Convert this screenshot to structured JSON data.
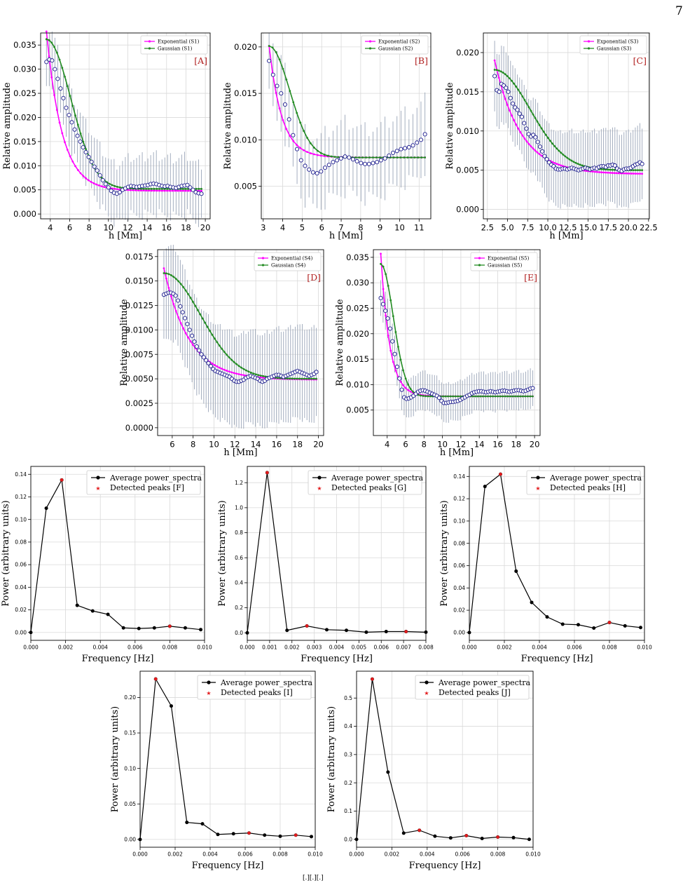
{
  "page": {
    "number": "7"
  },
  "colors": {
    "exponential": "#ff00ff",
    "gaussian": "#228b22",
    "observed_edge": "#1a1a8c",
    "error_bar": "#9aa5b8",
    "panel_letter": "#b22222",
    "spectrum_line": "#000000",
    "peak": "#e31a1c",
    "grid": "#d9d9d9"
  },
  "chart_data": [
    {
      "id": "A",
      "type": "scatter",
      "panel_label": "[A]",
      "xlabel": "h [Mm]",
      "ylabel": "Relative amplitude",
      "xlim": [
        3,
        20.5
      ],
      "ylim": [
        -0.001,
        0.0375
      ],
      "xticks": [
        "4",
        "6",
        "8",
        "10",
        "12",
        "14",
        "16",
        "18",
        "20"
      ],
      "yticks": [
        "0.000",
        "0.005",
        "0.010",
        "0.015",
        "0.020",
        "0.025",
        "0.030",
        "0.035"
      ],
      "legend": [
        "Exponential (S1)",
        "Gaussian (S1)"
      ],
      "legend_position": "top-right",
      "model": {
        "x_start": 3.6,
        "x_end": 19.6,
        "n": 60,
        "exponential": {
          "baseline": 0.0048,
          "amp": 0.033,
          "scale": 1.6
        },
        "gaussian": {
          "baseline": 0.0052,
          "amp": 0.031,
          "sigma": 2.5
        }
      },
      "observed": {
        "x_start": 3.6,
        "x_end": 19.6,
        "n": 56,
        "y": [
          0.0315,
          0.032,
          0.0318,
          0.03,
          0.028,
          0.026,
          0.024,
          0.022,
          0.0205,
          0.019,
          0.0175,
          0.0162,
          0.015,
          0.0138,
          0.0128,
          0.0118,
          0.0108,
          0.0098,
          0.009,
          0.008,
          0.007,
          0.0062,
          0.0055,
          0.0048,
          0.0044,
          0.0042,
          0.0045,
          0.005,
          0.0053,
          0.0056,
          0.0058,
          0.0057,
          0.0056,
          0.0057,
          0.0058,
          0.0059,
          0.006,
          0.0062,
          0.0063,
          0.0062,
          0.006,
          0.0058,
          0.0057,
          0.0058,
          0.0056,
          0.0055,
          0.0054,
          0.0056,
          0.0058,
          0.0059,
          0.006,
          0.0055,
          0.005,
          0.0045,
          0.0043,
          0.0042
        ]
      },
      "error_bar_halfwidth": [
        0.005,
        0.007
      ]
    },
    {
      "id": "B",
      "type": "scatter",
      "panel_label": "[B]",
      "xlabel": "h [Mm]",
      "ylabel": "Relative amplitude",
      "xlim": [
        2.9,
        11.6
      ],
      "ylim": [
        0.0015,
        0.0215
      ],
      "xticks": [
        "3",
        "4",
        "5",
        "6",
        "7",
        "8",
        "9",
        "10",
        "11"
      ],
      "yticks": [
        "0.005",
        "0.010",
        "0.015",
        "0.020"
      ],
      "legend": [
        "Exponential (S2)",
        "Gaussian (S2)"
      ],
      "legend_position": "top-right",
      "model": {
        "x_start": 3.3,
        "x_end": 11.3,
        "n": 46,
        "exponential": {
          "baseline": 0.0081,
          "amp": 0.012,
          "scale": 0.65
        },
        "gaussian": {
          "baseline": 0.0081,
          "amp": 0.012,
          "sigma": 1.05
        }
      },
      "observed": {
        "x_start": 3.3,
        "x_end": 11.3,
        "n": 40,
        "y": [
          0.0185,
          0.017,
          0.0158,
          0.015,
          0.0138,
          0.0122,
          0.0105,
          0.009,
          0.0078,
          0.0072,
          0.0068,
          0.0065,
          0.0064,
          0.0066,
          0.007,
          0.0073,
          0.0076,
          0.0078,
          0.008,
          0.0082,
          0.0081,
          0.0079,
          0.0077,
          0.0075,
          0.0074,
          0.0074,
          0.0075,
          0.0076,
          0.0078,
          0.008,
          0.0083,
          0.0086,
          0.0088,
          0.009,
          0.0091,
          0.0092,
          0.0094,
          0.0097,
          0.01,
          0.0106
        ]
      },
      "error_bar_halfwidth": [
        0.003,
        0.0045
      ]
    },
    {
      "id": "C",
      "type": "scatter",
      "panel_label": "[C]",
      "xlabel": "h [Mm]",
      "ylabel": "Relative amplitude",
      "xlim": [
        2.0,
        22.6
      ],
      "ylim": [
        -0.0012,
        0.0225
      ],
      "xticks": [
        "2.5",
        "5.0",
        "7.5",
        "10.0",
        "12.5",
        "15.0",
        "17.5",
        "20.0",
        "22.5"
      ],
      "yticks": [
        "0.000",
        "0.005",
        "0.010",
        "0.015",
        "0.020"
      ],
      "legend": [
        "Exponential (S3)",
        "Gaussian (S3)"
      ],
      "legend_position": "top-right",
      "model": {
        "x_start": 3.4,
        "x_end": 21.7,
        "n": 70,
        "exponential": {
          "baseline": 0.0045,
          "amp": 0.0145,
          "scale": 3.2
        },
        "gaussian": {
          "baseline": 0.005,
          "amp": 0.0128,
          "sigma": 4.4
        }
      },
      "observed": {
        "x_start": 3.4,
        "x_end": 21.7,
        "n": 66,
        "y": [
          0.017,
          0.0152,
          0.015,
          0.016,
          0.0158,
          0.0155,
          0.015,
          0.0142,
          0.0135,
          0.013,
          0.0127,
          0.0122,
          0.0118,
          0.011,
          0.0103,
          0.0096,
          0.0093,
          0.0095,
          0.0092,
          0.0086,
          0.008,
          0.0074,
          0.0068,
          0.0064,
          0.006,
          0.0057,
          0.0055,
          0.0052,
          0.0051,
          0.0051,
          0.0052,
          0.0052,
          0.0051,
          0.0052,
          0.0053,
          0.0052,
          0.0051,
          0.005,
          0.0051,
          0.0052,
          0.0053,
          0.0052,
          0.0051,
          0.0052,
          0.0053,
          0.0052,
          0.0054,
          0.0055,
          0.0055,
          0.0054,
          0.0056,
          0.0056,
          0.0057,
          0.0056,
          0.0052,
          0.005,
          0.0049,
          0.0051,
          0.0052,
          0.0052,
          0.0053,
          0.0055,
          0.0057,
          0.0058,
          0.006,
          0.0058
        ]
      },
      "error_bar_halfwidth": [
        0.0045,
        0.005
      ]
    },
    {
      "id": "D",
      "type": "scatter",
      "panel_label": "[D]",
      "xlabel": "h [Mm]",
      "ylabel": "Relative amplitude",
      "xlim": [
        4.6,
        20.5
      ],
      "ylim": [
        -0.0008,
        0.0182
      ],
      "xticks": [
        "6",
        "8",
        "10",
        "12",
        "14",
        "16",
        "18",
        "20"
      ],
      "yticks": [
        "0.0000",
        "0.0025",
        "0.0050",
        "0.0075",
        "0.0100",
        "0.0125",
        "0.0150",
        "0.0175"
      ],
      "legend": [
        "Exponential (S4)",
        "Gaussian (S4)"
      ],
      "legend_position": "top-right",
      "model": {
        "x_start": 5.2,
        "x_end": 19.8,
        "n": 64,
        "exponential": {
          "baseline": 0.0049,
          "amp": 0.0114,
          "scale": 2.4
        },
        "gaussian": {
          "baseline": 0.005,
          "amp": 0.0108,
          "sigma": 3.5
        }
      },
      "observed": {
        "x_start": 5.2,
        "x_end": 19.8,
        "n": 66,
        "y": [
          0.0136,
          0.0137,
          0.0138,
          0.0138,
          0.0137,
          0.0135,
          0.013,
          0.0124,
          0.0118,
          0.0112,
          0.0106,
          0.01,
          0.0094,
          0.0088,
          0.0083,
          0.0079,
          0.0075,
          0.0072,
          0.0069,
          0.0066,
          0.0063,
          0.006,
          0.0058,
          0.0057,
          0.0056,
          0.0055,
          0.0054,
          0.0053,
          0.0052,
          0.005,
          0.0048,
          0.0047,
          0.0047,
          0.0048,
          0.0049,
          0.0051,
          0.0052,
          0.0053,
          0.0052,
          0.0051,
          0.005,
          0.0048,
          0.0047,
          0.0048,
          0.005,
          0.0051,
          0.0052,
          0.0053,
          0.0054,
          0.0054,
          0.0053,
          0.0052,
          0.0053,
          0.0054,
          0.0055,
          0.0056,
          0.0057,
          0.0058,
          0.0057,
          0.0056,
          0.0055,
          0.0054,
          0.0053,
          0.0054,
          0.0055,
          0.0057
        ]
      },
      "error_bar_halfwidth": [
        0.0045,
        0.005
      ]
    },
    {
      "id": "E",
      "type": "scatter",
      "panel_label": "[E]",
      "xlabel": "h [Mm]",
      "ylabel": "Relative amplitude",
      "xlim": [
        2.5,
        20.6
      ],
      "ylim": [
        0.0,
        0.0365
      ],
      "xticks": [
        "4",
        "6",
        "8",
        "10",
        "12",
        "14",
        "16",
        "18",
        "20"
      ],
      "yticks": [
        "0.005",
        "0.010",
        "0.015",
        "0.020",
        "0.025",
        "0.030",
        "0.035"
      ],
      "legend": [
        "Exponential (S5)",
        "Gaussian (S5)"
      ],
      "legend_position": "top-right",
      "model": {
        "x_start": 3.3,
        "x_end": 19.8,
        "n": 62,
        "exponential": {
          "baseline": 0.0077,
          "amp": 0.028,
          "scale": 0.95
        },
        "gaussian": {
          "baseline": 0.0077,
          "amp": 0.026,
          "sigma": 1.35
        }
      },
      "observed": {
        "x_start": 3.3,
        "x_end": 19.8,
        "n": 66,
        "y": [
          0.027,
          0.0258,
          0.0245,
          0.023,
          0.021,
          0.0185,
          0.016,
          0.0135,
          0.0112,
          0.009,
          0.0075,
          0.0072,
          0.0073,
          0.0075,
          0.0078,
          0.0082,
          0.0086,
          0.0088,
          0.0089,
          0.0088,
          0.0086,
          0.0084,
          0.0082,
          0.008,
          0.0078,
          0.0074,
          0.0068,
          0.0064,
          0.0064,
          0.0065,
          0.0066,
          0.0066,
          0.0067,
          0.0068,
          0.007,
          0.0073,
          0.0075,
          0.0078,
          0.008,
          0.0083,
          0.0085,
          0.0086,
          0.0087,
          0.0087,
          0.0086,
          0.0085,
          0.0086,
          0.0087,
          0.0086,
          0.0085,
          0.0086,
          0.0087,
          0.0088,
          0.0088,
          0.0087,
          0.0086,
          0.0087,
          0.0088,
          0.0089,
          0.0089,
          0.0088,
          0.0087,
          0.0088,
          0.009,
          0.0092,
          0.0093
        ]
      },
      "error_bar_halfwidth": [
        0.0035,
        0.004
      ]
    },
    {
      "id": "F",
      "type": "line",
      "xlabel": "Frequency [Hz]",
      "ylabel": "Power (arbitrary units)",
      "xlim": [
        0,
        0.01
      ],
      "ylim": [
        -0.007,
        0.147
      ],
      "xticks": [
        "0.000",
        "0.002",
        "0.004",
        "0.006",
        "0.008",
        "0.010"
      ],
      "yticks": [
        "0.00",
        "0.02",
        "0.04",
        "0.06",
        "0.08",
        "0.10",
        "0.12",
        "0.14"
      ],
      "legend": [
        "Average power_spectra",
        "Detected peaks [F]"
      ],
      "legend_position": "top-right",
      "x": [
        0.0,
        0.00089,
        0.00178,
        0.00267,
        0.00356,
        0.00444,
        0.00533,
        0.00622,
        0.00711,
        0.008,
        0.00889,
        0.00978
      ],
      "y": [
        0.0,
        0.11,
        0.135,
        0.024,
        0.019,
        0.016,
        0.004,
        0.0035,
        0.004,
        0.0055,
        0.004,
        0.0025
      ],
      "peaks_x": [
        0.00178,
        0.008
      ],
      "peaks_y": [
        0.135,
        0.0055
      ]
    },
    {
      "id": "G",
      "type": "line",
      "xlabel": "Frequency [Hz]",
      "ylabel": "Power (arbitrary units)",
      "xlim": [
        0,
        0.008
      ],
      "ylim": [
        -0.06,
        1.33
      ],
      "xticks": [
        "0.000",
        "0.001",
        "0.002",
        "0.003",
        "0.004",
        "0.005",
        "0.006",
        "0.007",
        "0.008"
      ],
      "yticks": [
        "0.0",
        "0.2",
        "0.4",
        "0.6",
        "0.8",
        "1.0",
        "1.2"
      ],
      "legend": [
        "Average power_spectra",
        "Detected peaks [G]"
      ],
      "legend_position": "top-right",
      "x": [
        0.0,
        0.00089,
        0.00178,
        0.00267,
        0.00356,
        0.00444,
        0.00533,
        0.00622,
        0.00711,
        0.008
      ],
      "y": [
        0.0,
        1.28,
        0.02,
        0.055,
        0.025,
        0.02,
        0.005,
        0.01,
        0.01,
        0.005
      ],
      "peaks_x": [
        0.00089,
        0.00267,
        0.00711
      ],
      "peaks_y": [
        1.28,
        0.055,
        0.01
      ]
    },
    {
      "id": "H",
      "type": "line",
      "xlabel": "Frequency [Hz]",
      "ylabel": "Power (arbitrary units)",
      "xlim": [
        0,
        0.01
      ],
      "ylim": [
        -0.007,
        0.149
      ],
      "xticks": [
        "0.000",
        "0.002",
        "0.004",
        "0.006",
        "0.008",
        "0.010"
      ],
      "yticks": [
        "0.00",
        "0.02",
        "0.04",
        "0.06",
        "0.08",
        "0.10",
        "0.12",
        "0.14"
      ],
      "legend": [
        "Average power_spectra",
        "Detected peaks [H]"
      ],
      "legend_position": "top-right",
      "x": [
        0.0,
        0.00089,
        0.00178,
        0.00267,
        0.00356,
        0.00444,
        0.00533,
        0.00622,
        0.00711,
        0.008,
        0.00889,
        0.00978
      ],
      "y": [
        0.0,
        0.131,
        0.142,
        0.055,
        0.027,
        0.014,
        0.0075,
        0.007,
        0.004,
        0.009,
        0.006,
        0.0045
      ],
      "peaks_x": [
        0.00178,
        0.008
      ],
      "peaks_y": [
        0.142,
        0.009
      ]
    },
    {
      "id": "I",
      "type": "line",
      "xlabel": "Frequency [Hz]",
      "ylabel": "Power (arbitrary units)",
      "xlim": [
        0,
        0.01
      ],
      "ylim": [
        -0.011,
        0.237
      ],
      "xticks": [
        "0.000",
        "0.002",
        "0.004",
        "0.006",
        "0.008",
        "0.010"
      ],
      "yticks": [
        "0.00",
        "0.05",
        "0.10",
        "0.15",
        "0.20"
      ],
      "legend": [
        "Average power_spectra",
        "Detected peaks [I]"
      ],
      "legend_position": "top-right",
      "x": [
        0.0,
        0.00089,
        0.00178,
        0.00267,
        0.00356,
        0.00444,
        0.00533,
        0.00622,
        0.00711,
        0.008,
        0.00889,
        0.00978
      ],
      "y": [
        0.0,
        0.226,
        0.188,
        0.024,
        0.022,
        0.007,
        0.008,
        0.009,
        0.006,
        0.0045,
        0.006,
        0.004
      ],
      "peaks_x": [
        0.00089,
        0.00622,
        0.00889
      ],
      "peaks_y": [
        0.226,
        0.009,
        0.006
      ]
    },
    {
      "id": "J",
      "type": "line",
      "xlabel": "Frequency [Hz]",
      "ylabel": "Power (arbitrary units)",
      "xlim": [
        0,
        0.01
      ],
      "ylim": [
        -0.028,
        0.595
      ],
      "xticks": [
        "0.000",
        "0.002",
        "0.004",
        "0.006",
        "0.008",
        "0.010"
      ],
      "yticks": [
        "0.0",
        "0.1",
        "0.2",
        "0.3",
        "0.4",
        "0.5"
      ],
      "legend": [
        "Average power_spectra",
        "Detected peaks [J]"
      ],
      "legend_position": "top-right",
      "x": [
        0.0,
        0.00089,
        0.00178,
        0.00267,
        0.00356,
        0.00444,
        0.00533,
        0.00622,
        0.00711,
        0.008,
        0.00889,
        0.00978
      ],
      "y": [
        0.0,
        0.567,
        0.238,
        0.022,
        0.032,
        0.011,
        0.005,
        0.013,
        0.003,
        0.008,
        0.006,
        0.0
      ],
      "peaks_x": [
        0.00089,
        0.00356,
        0.00622,
        0.008
      ],
      "peaks_y": [
        0.567,
        0.032,
        0.013,
        0.008
      ]
    }
  ]
}
